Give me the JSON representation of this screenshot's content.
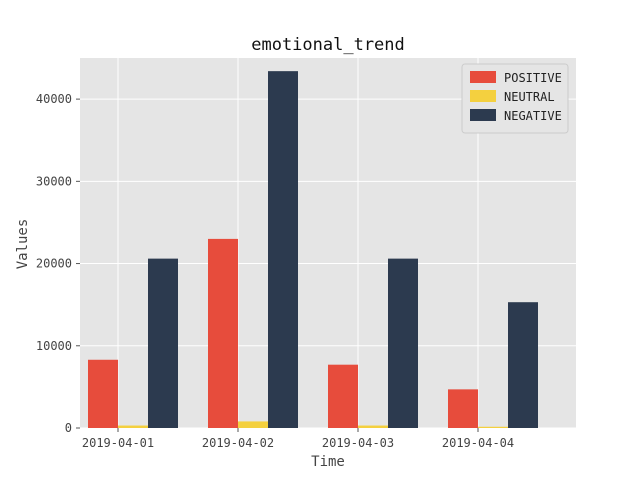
{
  "chart_data": {
    "type": "bar",
    "title": "emotional_trend",
    "xlabel": "Time",
    "ylabel": "Values",
    "categories": [
      "2019-04-01",
      "2019-04-02",
      "2019-04-03",
      "2019-04-04"
    ],
    "series": [
      {
        "name": "POSITIVE",
        "color": "#e74c3c",
        "values": [
          8300,
          23000,
          7700,
          4700
        ]
      },
      {
        "name": "NEUTRAL",
        "color": "#f4d03f",
        "values": [
          300,
          800,
          300,
          150
        ]
      },
      {
        "name": "NEGATIVE",
        "color": "#2c3a4f",
        "values": [
          20600,
          43400,
          20600,
          15300
        ]
      }
    ],
    "ylim": [
      0,
      45000
    ],
    "yticks": [
      0,
      10000,
      20000,
      30000,
      40000
    ],
    "grid": true,
    "legend_position": "top-right",
    "background_color": "#e5e5e5",
    "grid_color": "#ffffff"
  }
}
